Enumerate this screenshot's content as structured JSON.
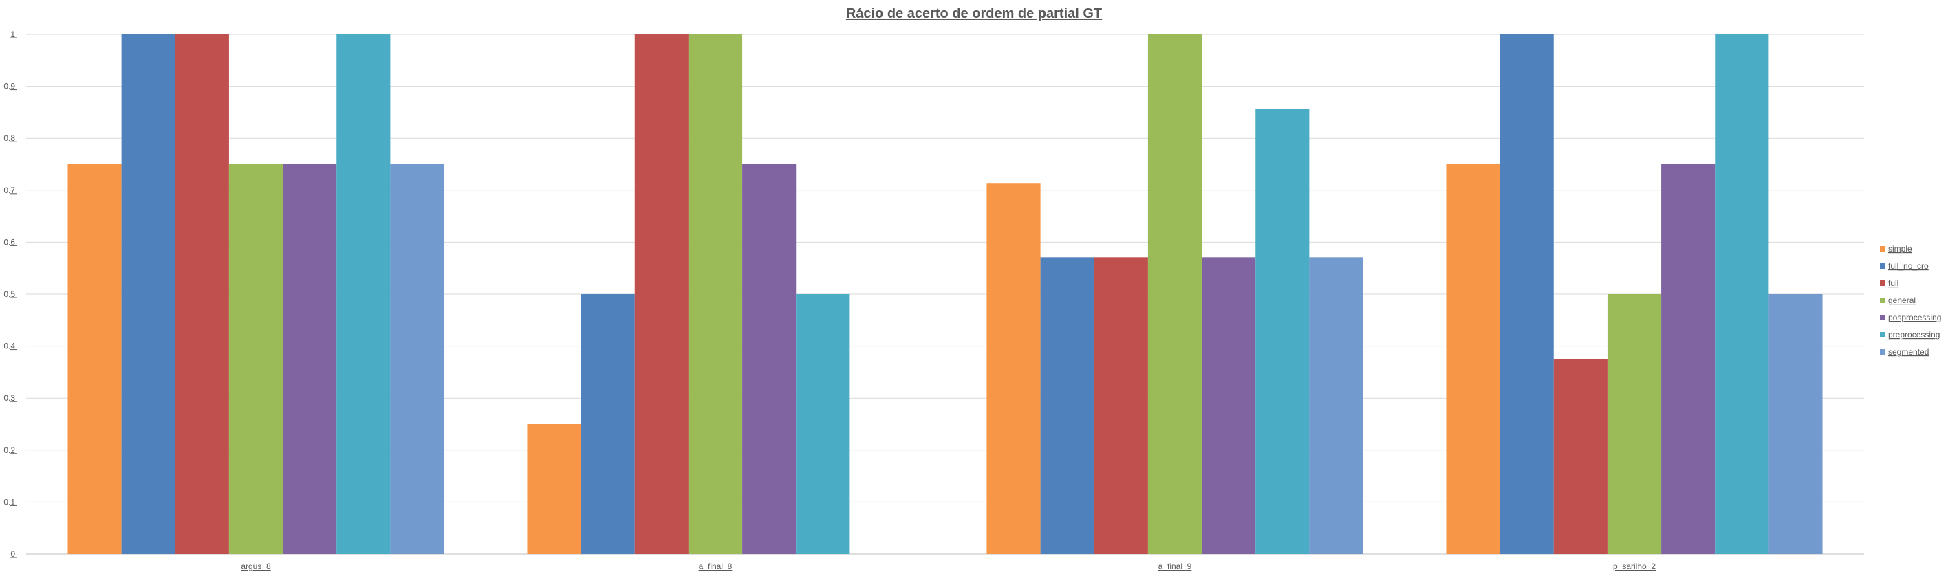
{
  "chart_data": {
    "type": "bar",
    "title": "Rácio de acerto de ordem de partial GT",
    "xlabel": "",
    "ylabel": "",
    "ylim": [
      0,
      1
    ],
    "yticks": [
      "0",
      "0.1",
      "0.2",
      "0.3",
      "0.4",
      "0.5",
      "0.6",
      "0.7",
      "0.8",
      "0.9",
      "1"
    ],
    "categories": [
      "argus_8",
      "a_final_8",
      "a_final_9",
      "p_sarilho_2"
    ],
    "grid": true,
    "legend_position": "right",
    "series": [
      {
        "name": "simple",
        "color": "#F79646",
        "values": [
          0.75,
          0.25,
          0.714,
          0.75
        ]
      },
      {
        "name": "full_no_cro",
        "color": "#4F81BD",
        "values": [
          1,
          0.5,
          0.571,
          1
        ]
      },
      {
        "name": "full",
        "color": "#C0504D",
        "values": [
          1,
          1,
          0.571,
          0.375
        ]
      },
      {
        "name": "general",
        "color": "#9BBB59",
        "values": [
          0.75,
          1,
          1,
          0.5
        ]
      },
      {
        "name": "posprocessing",
        "color": "#8064A2",
        "values": [
          0.75,
          0.75,
          0.571,
          0.75
        ]
      },
      {
        "name": "preprocessing",
        "color": "#4BACC6",
        "values": [
          1,
          0.5,
          0.857,
          1
        ]
      },
      {
        "name": "segmented",
        "color": "#729ACE",
        "values": [
          0.75,
          null,
          0.571,
          0.5
        ]
      }
    ]
  }
}
